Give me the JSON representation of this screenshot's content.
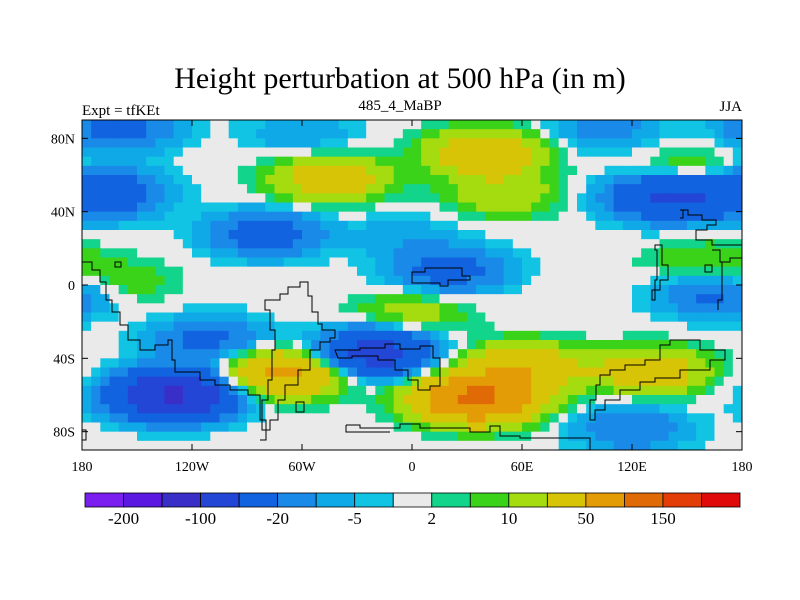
{
  "chart_data": {
    "type": "heatmap",
    "title": "Height perturbation at 500 hPa (in m)",
    "left_string": "Expt = tfKEt",
    "center_string": "485_4_MaBP",
    "right_string": "JJA",
    "x_ticks": [
      "180",
      "120W",
      "60W",
      "0",
      "60E",
      "120E",
      "180"
    ],
    "x_tick_values": [
      -180,
      -120,
      -60,
      0,
      60,
      120,
      180
    ],
    "y_ticks": [
      "80N",
      "40N",
      "0",
      "40S",
      "80S"
    ],
    "y_tick_values": [
      80,
      40,
      0,
      -40,
      -80
    ],
    "xlim": [
      -180,
      180
    ],
    "ylim": [
      -90,
      90
    ],
    "contour_levels": [
      -200,
      -150,
      -100,
      -50,
      -20,
      -10,
      -5,
      -2,
      2,
      5,
      10,
      20,
      50,
      100,
      150,
      200
    ],
    "colors": [
      "#7a1ff0",
      "#5a18e0",
      "#3a2ec8",
      "#2346d6",
      "#1263df",
      "#1a8ae8",
      "#10a9e8",
      "#12c4e4",
      "#eaeaea",
      "#12d48a",
      "#3bd21a",
      "#a4dc10",
      "#d8c406",
      "#e49c06",
      "#e06a06",
      "#e43e08",
      "#e00a0a"
    ],
    "colorbar_labels": [
      {
        "value": -200,
        "label": "-200"
      },
      {
        "value": -100,
        "label": "-100"
      },
      {
        "value": -20,
        "label": "-20"
      },
      {
        "value": -5,
        "label": "-5"
      },
      {
        "value": 2,
        "label": "2"
      },
      {
        "value": 10,
        "label": "10"
      },
      {
        "value": 50,
        "label": "50"
      },
      {
        "value": 150,
        "label": "150"
      }
    ],
    "field_features": [
      {
        "lon": 35,
        "lat": -62,
        "value": 110
      },
      {
        "lon": 60,
        "lat": -45,
        "value": 45
      },
      {
        "lon": 130,
        "lat": -47,
        "value": 35
      },
      {
        "lon": -70,
        "lat": -48,
        "value": 60
      },
      {
        "lon": 40,
        "lat": 72,
        "value": 40
      },
      {
        "lon": -45,
        "lat": 58,
        "value": 35
      },
      {
        "lon": 50,
        "lat": 50,
        "value": 18
      },
      {
        "lon": 160,
        "lat": 12,
        "value": 12
      },
      {
        "lon": -160,
        "lat": 2,
        "value": 10
      },
      {
        "lon": 0,
        "lat": -15,
        "value": 15
      },
      {
        "lon": 150,
        "lat": 62,
        "value": 14
      },
      {
        "lon": -130,
        "lat": -60,
        "value": -110
      },
      {
        "lon": -20,
        "lat": -37,
        "value": -70
      },
      {
        "lon": -110,
        "lat": -30,
        "value": -25
      },
      {
        "lon": -170,
        "lat": 50,
        "value": -45
      },
      {
        "lon": 140,
        "lat": 48,
        "value": -60
      },
      {
        "lon": -80,
        "lat": 28,
        "value": -30
      },
      {
        "lon": -5,
        "lat": 28,
        "value": -8
      },
      {
        "lon": 20,
        "lat": 8,
        "value": -30
      },
      {
        "lon": 165,
        "lat": -5,
        "value": -25
      },
      {
        "lon": -160,
        "lat": 85,
        "value": -25
      },
      {
        "lon": -60,
        "lat": 82,
        "value": -10
      },
      {
        "lon": 120,
        "lat": -78,
        "value": -20
      },
      {
        "lon": 105,
        "lat": 85,
        "value": -15
      }
    ]
  }
}
